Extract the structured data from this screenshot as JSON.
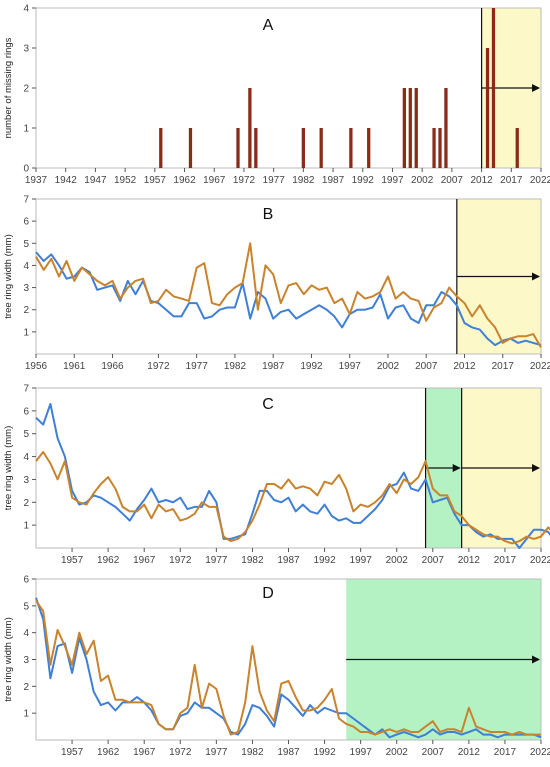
{
  "colors": {
    "blue": "#3f7fd6",
    "orange": "#c8832c",
    "bar": "#8b2a17",
    "yellow_bg": "#fcf8c8",
    "green_bg": "#b4f2c4",
    "axis": "#555555",
    "grid": "#bbbbbb"
  },
  "chart_data": [
    {
      "type": "bar",
      "panel_label": "A",
      "ylabel": "number of missing rings",
      "xlim": [
        1937,
        2022
      ],
      "ylim": [
        0,
        4
      ],
      "xticks": [
        1937,
        1942,
        1947,
        1952,
        1957,
        1962,
        1967,
        1972,
        1977,
        1982,
        1987,
        1992,
        1997,
        2002,
        2007,
        2012,
        2017,
        2022
      ],
      "yticks": [
        0,
        1,
        2,
        3,
        4
      ],
      "shaded": [
        {
          "from": 2012,
          "to": 2022,
          "color": "yellow",
          "arrow": true,
          "divider": true
        }
      ],
      "bars": [
        {
          "x": 1958,
          "y": 1
        },
        {
          "x": 1963,
          "y": 1
        },
        {
          "x": 1971,
          "y": 1
        },
        {
          "x": 1973,
          "y": 2
        },
        {
          "x": 1974,
          "y": 1
        },
        {
          "x": 1982,
          "y": 1
        },
        {
          "x": 1985,
          "y": 1
        },
        {
          "x": 1990,
          "y": 1
        },
        {
          "x": 1993,
          "y": 1
        },
        {
          "x": 1999,
          "y": 2
        },
        {
          "x": 2000,
          "y": 2
        },
        {
          "x": 2001,
          "y": 2
        },
        {
          "x": 2004,
          "y": 1
        },
        {
          "x": 2005,
          "y": 1
        },
        {
          "x": 2006,
          "y": 2
        },
        {
          "x": 2013,
          "y": 3
        },
        {
          "x": 2014,
          "y": 4
        },
        {
          "x": 2018,
          "y": 1
        }
      ]
    },
    {
      "type": "line",
      "panel_label": "B",
      "ylabel": "tree ring width (mm)",
      "xlim": [
        1956,
        2022
      ],
      "ylim": [
        0,
        7
      ],
      "xticks": [
        1956,
        1961,
        1966,
        1972,
        1977,
        1982,
        1987,
        1992,
        1997,
        2002,
        2007,
        2012,
        2017,
        2022
      ],
      "yticks": [
        1,
        2,
        3,
        4,
        5,
        6,
        7
      ],
      "shaded": [
        {
          "from": 2011,
          "to": 2022,
          "color": "yellow",
          "arrow": true,
          "divider": true
        }
      ],
      "x_start": 1956,
      "series": [
        {
          "color": "blue",
          "values": [
            4.6,
            4.2,
            4.5,
            4.0,
            3.4,
            3.5,
            3.9,
            3.7,
            2.9,
            3.0,
            3.1,
            2.4,
            3.3,
            2.7,
            3.3,
            2.4,
            2.3,
            2.0,
            1.7,
            1.7,
            2.3,
            2.3,
            1.6,
            1.7,
            2.0,
            2.1,
            2.1,
            3.2,
            1.6,
            2.8,
            2.5,
            1.6,
            1.9,
            2.0,
            1.6,
            1.8,
            2.0,
            2.2,
            2.0,
            1.7,
            1.2,
            1.8,
            2.0,
            2.0,
            2.1,
            2.7,
            1.6,
            2.1,
            2.2,
            1.6,
            1.4,
            2.2,
            2.2,
            2.8,
            2.6,
            2.2,
            1.4,
            1.2,
            1.1,
            0.7,
            0.4,
            0.6,
            0.7,
            0.5,
            0.6,
            0.5,
            0.4
          ]
        },
        {
          "color": "orange",
          "values": [
            4.4,
            3.8,
            4.3,
            3.5,
            4.2,
            3.3,
            3.9,
            3.6,
            3.3,
            3.1,
            3.3,
            2.5,
            3.0,
            3.3,
            3.4,
            2.3,
            2.4,
            2.9,
            2.6,
            2.5,
            2.4,
            3.9,
            4.1,
            2.3,
            2.2,
            2.7,
            3.0,
            3.2,
            5.0,
            2.0,
            4.0,
            3.6,
            2.3,
            3.1,
            3.2,
            2.7,
            3.1,
            2.9,
            3.0,
            2.3,
            2.5,
            1.8,
            2.8,
            2.5,
            2.6,
            2.8,
            3.5,
            2.5,
            2.8,
            2.5,
            2.4,
            1.5,
            2.1,
            2.3,
            3.0,
            2.6,
            2.3,
            1.7,
            2.2,
            1.6,
            1.2,
            0.5,
            0.7,
            0.8,
            0.8,
            0.9,
            0.3
          ]
        }
      ]
    },
    {
      "type": "line",
      "panel_label": "C",
      "ylabel": "tree ring width (mm)",
      "xlim": [
        1952,
        2022
      ],
      "ylim": [
        0,
        7
      ],
      "xticks": [
        1957,
        1962,
        1967,
        1972,
        1977,
        1982,
        1987,
        1992,
        1997,
        2002,
        2007,
        2012,
        2017,
        2022
      ],
      "yticks": [
        1,
        2,
        3,
        4,
        5,
        6,
        7
      ],
      "shaded": [
        {
          "from": 2006,
          "to": 2011,
          "color": "green",
          "arrow": true,
          "divider": true
        },
        {
          "from": 2011,
          "to": 2022,
          "color": "yellow",
          "arrow": true,
          "divider": true
        }
      ],
      "x_start": 1952,
      "series": [
        {
          "color": "blue",
          "values": [
            5.7,
            5.4,
            6.3,
            4.8,
            4.0,
            2.5,
            1.9,
            2.0,
            2.3,
            2.2,
            2.0,
            1.8,
            1.5,
            1.2,
            1.7,
            2.1,
            2.6,
            2.0,
            2.1,
            2.0,
            2.2,
            1.7,
            1.8,
            1.8,
            2.5,
            2.0,
            0.4,
            0.4,
            0.5,
            0.6,
            1.5,
            2.5,
            2.5,
            2.1,
            2.0,
            2.2,
            1.6,
            1.9,
            1.6,
            1.5,
            1.9,
            1.4,
            1.2,
            1.3,
            1.1,
            1.1,
            1.4,
            1.7,
            2.1,
            2.7,
            2.8,
            3.3,
            2.6,
            2.5,
            3.0,
            2.0,
            2.1,
            2.2,
            1.5,
            1.0,
            1.0,
            0.7,
            0.5,
            0.6,
            0.4,
            0.4,
            0.4,
            0.0,
            0.4,
            0.8,
            0.8,
            0.7,
            0.3
          ]
        },
        {
          "color": "orange",
          "values": [
            3.8,
            4.2,
            3.7,
            3.0,
            3.8,
            2.2,
            2.0,
            1.9,
            2.4,
            2.8,
            3.1,
            2.6,
            1.8,
            1.6,
            1.6,
            1.9,
            1.3,
            1.9,
            1.6,
            1.7,
            1.2,
            1.3,
            1.5,
            2.0,
            1.8,
            1.8,
            0.5,
            0.3,
            0.4,
            0.7,
            1.2,
            1.9,
            2.8,
            2.8,
            2.6,
            3.0,
            2.6,
            2.7,
            2.6,
            2.3,
            2.9,
            2.8,
            3.2,
            2.6,
            1.6,
            1.9,
            1.8,
            2.0,
            2.3,
            2.8,
            2.4,
            3.0,
            2.8,
            3.1,
            3.8,
            2.6,
            2.3,
            2.3,
            1.6,
            1.4,
            1.0,
            0.8,
            0.6,
            0.5,
            0.5,
            0.3,
            0.2,
            0.3,
            0.5,
            0.4,
            0.5,
            0.9,
            0.6
          ]
        }
      ]
    },
    {
      "type": "line",
      "panel_label": "D",
      "ylabel": "tree ring width (mm)",
      "xlim": [
        1952,
        2022
      ],
      "ylim": [
        0,
        6
      ],
      "xticks": [
        1957,
        1962,
        1967,
        1972,
        1977,
        1982,
        1987,
        1992,
        1997,
        2002,
        2007,
        2012,
        2017,
        2022
      ],
      "yticks": [
        1,
        2,
        3,
        4,
        5,
        6
      ],
      "shaded": [
        {
          "from": 1995,
          "to": 2022,
          "color": "green",
          "arrow": true,
          "divider": false
        }
      ],
      "x_start": 1952,
      "series": [
        {
          "color": "blue",
          "values": [
            5.3,
            4.5,
            2.3,
            3.5,
            3.6,
            2.5,
            3.8,
            3.0,
            1.8,
            1.3,
            1.4,
            1.1,
            1.4,
            1.4,
            1.6,
            1.4,
            1.1,
            0.6,
            0.4,
            0.4,
            0.9,
            1.0,
            1.4,
            1.2,
            1.2,
            1.0,
            0.8,
            0.3,
            0.2,
            0.6,
            1.3,
            1.2,
            0.9,
            0.5,
            1.7,
            1.5,
            1.2,
            0.9,
            1.3,
            1.0,
            1.2,
            1.1,
            1.0,
            1.0,
            0.8,
            0.6,
            0.4,
            0.2,
            0.4,
            0.1,
            0.2,
            0.3,
            0.2,
            0.1,
            0.2,
            0.4,
            0.2,
            0.3,
            0.3,
            0.2,
            0.3,
            0.4,
            0.2,
            0.2,
            0.1,
            0.2,
            0.2,
            0.2,
            0.2,
            0.2,
            0.1
          ]
        },
        {
          "color": "orange",
          "values": [
            5.2,
            4.8,
            2.8,
            4.1,
            3.5,
            2.8,
            4.0,
            3.2,
            3.7,
            2.2,
            2.4,
            1.5,
            1.5,
            1.4,
            1.4,
            1.4,
            1.3,
            0.6,
            0.4,
            0.4,
            1.0,
            1.2,
            2.8,
            1.2,
            2.1,
            1.9,
            0.9,
            0.2,
            0.3,
            1.4,
            3.5,
            1.8,
            1.1,
            0.7,
            2.1,
            2.2,
            1.6,
            1.1,
            1.1,
            1.2,
            1.5,
            1.9,
            0.8,
            0.6,
            0.5,
            0.3,
            0.3,
            0.2,
            0.3,
            0.4,
            0.3,
            0.4,
            0.3,
            0.3,
            0.5,
            0.7,
            0.3,
            0.4,
            0.4,
            0.3,
            1.2,
            0.5,
            0.4,
            0.3,
            0.3,
            0.3,
            0.2,
            0.3,
            0.2,
            0.2,
            0.2
          ]
        }
      ]
    }
  ]
}
